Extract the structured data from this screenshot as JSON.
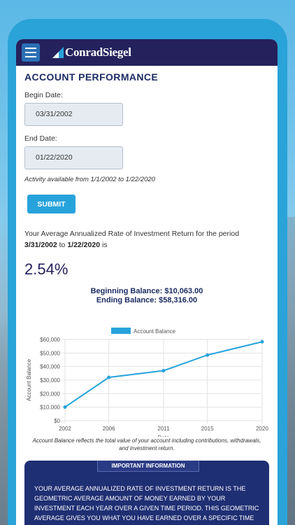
{
  "app": {
    "logo": "ConradSiegel"
  },
  "page": {
    "title": "ACCOUNT PERFORMANCE",
    "begin_label": "Begin Date:",
    "begin_value": "03/31/2002",
    "end_label": "End Date:",
    "end_value": "01/22/2020",
    "activity_note": "Activity available from 1/1/2002 to 1/22/2020",
    "submit_label": "SUBMIT",
    "rate_intro": "Your Average Annualized Rate of Investment Return for the period",
    "rate_period_start": "3/31/2002",
    "rate_period_to": "to",
    "rate_period_end": "1/22/2020",
    "rate_period_is": "is",
    "rate_value": "2.54%",
    "beginning_balance": "Beginning Balance: $10,063.00",
    "ending_balance": "Ending Balance: $58,316.00",
    "chart_caption": "Account Balance reflects the total value of your account including contributions, withdrawals, and investment return.",
    "info_header": "IMPORTANT INFORMATION",
    "info_text": "YOUR AVERAGE ANNUALIZED RATE OF INVESTMENT RETURN IS THE GEOMETRIC AVERAGE AMOUNT OF MONEY EARNED BY YOUR INVESTMENT EACH YEAR OVER A GIVEN TIME PERIOD. THIS GEOMETRIC AVERAGE GIVES YOU WHAT YOU HAVE EARNED OVER A SPECIFIC TIME PERIOD IF THE"
  },
  "colors": {
    "navy": "#25215c",
    "accent": "#27a3dc",
    "info_bg": "#1f2f73"
  },
  "chart_data": {
    "type": "line",
    "x": [
      "2002",
      "2006",
      "2011",
      "2015",
      "2020"
    ],
    "series": [
      {
        "name": "Account Balance",
        "values": [
          10063,
          32000,
          37000,
          48500,
          58316
        ],
        "color": "#27a3dc"
      }
    ],
    "xlabel": "Date",
    "ylabel": "Account Balance",
    "ylim": [
      0,
      60000
    ],
    "yticks": [
      "$0",
      "$10,000",
      "$20,000",
      "$30,000",
      "$40,000",
      "$50,000",
      "$60,000"
    ],
    "grid": true,
    "legend": "top-center"
  }
}
